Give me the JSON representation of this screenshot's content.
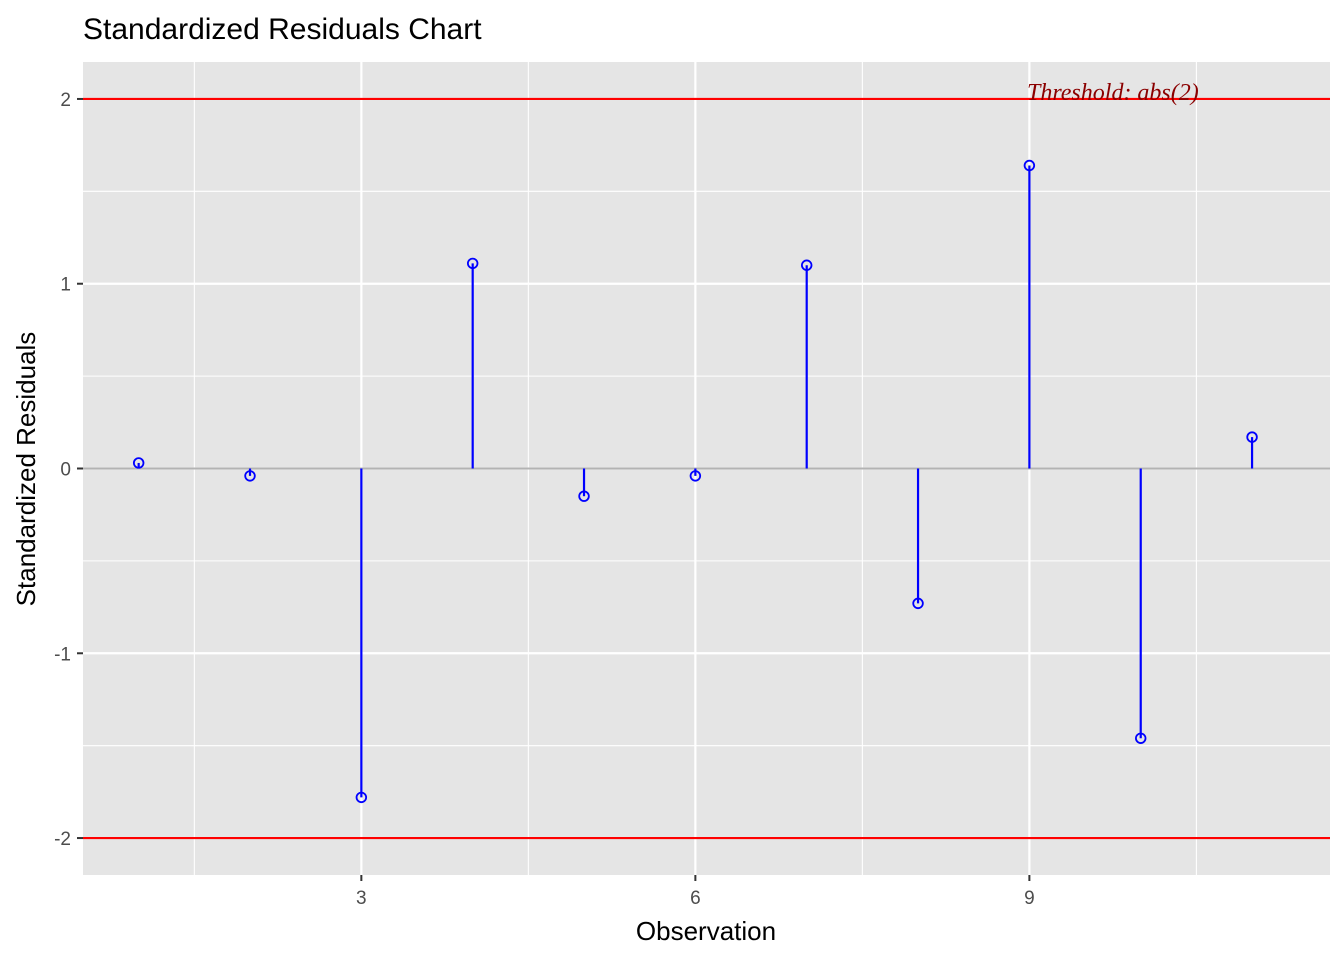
{
  "chart_data": {
    "type": "scatter",
    "subtype": "lollipop",
    "title": "Standardized Residuals Chart",
    "xlabel": "Observation",
    "ylabel": "Standardized Residuals",
    "xlim": [
      0.5,
      11.7
    ],
    "ylim": [
      -2.2,
      2.2
    ],
    "x_ticks": [
      3,
      6,
      9
    ],
    "y_ticks": [
      -2,
      -1,
      0,
      1,
      2
    ],
    "x_tick_labels": [
      "3",
      "6",
      "9"
    ],
    "y_tick_labels": [
      "-2",
      "-1",
      "0",
      "1",
      "2"
    ],
    "grid": true,
    "series": [
      {
        "x": [
          1,
          2,
          3,
          4,
          5,
          6,
          7,
          8,
          9,
          10,
          11
        ],
        "values": [
          0.03,
          -0.04,
          -1.78,
          1.11,
          -0.15,
          -0.04,
          1.1,
          -0.73,
          1.64,
          -1.46,
          0.17
        ],
        "color": "#0000ff"
      }
    ],
    "thresholds": [
      2,
      -2
    ],
    "threshold_color": "#ff0000",
    "baseline": 0,
    "baseline_color": "#b3b3b3",
    "annotation": {
      "text": "Threshold: abs(2)",
      "x": 9.75,
      "y": 2,
      "color": "#8b0000"
    },
    "panel_background": "#e5e5e5",
    "grid_color": "#ffffff"
  }
}
